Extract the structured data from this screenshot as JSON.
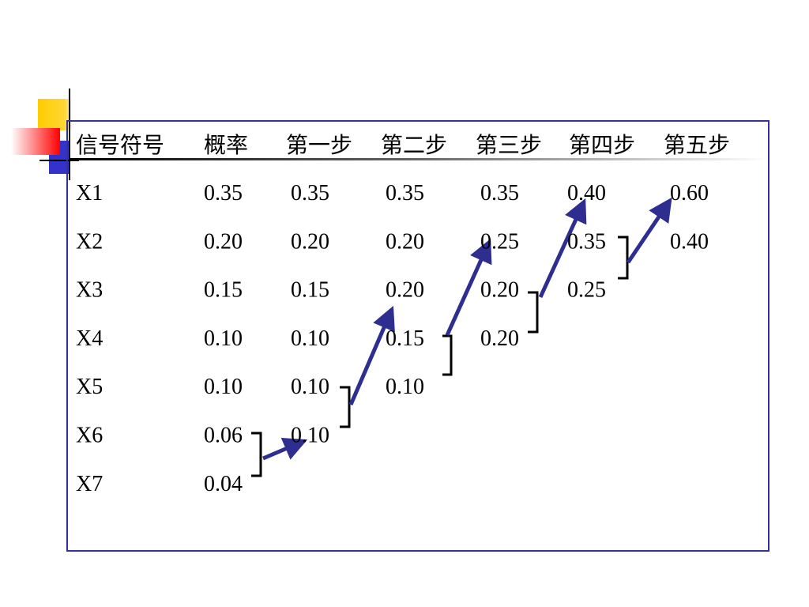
{
  "table": {
    "header": [
      "信号符号",
      "概率",
      "第一步",
      "第二步",
      "第三步",
      "第四步",
      "第五步"
    ],
    "rows": [
      [
        "X1",
        "0.35",
        "0.35",
        "0.35",
        "0.35",
        "0.40",
        "0.60"
      ],
      [
        "X2",
        "0.20",
        "0.20",
        "0.20",
        "0.25",
        "0.35",
        "0.40"
      ],
      [
        "X3",
        "0.15",
        "0.15",
        "0.20",
        "0.20",
        "0.25"
      ],
      [
        "X4",
        "0.10",
        "0.10",
        "0.15",
        "0.20"
      ],
      [
        "X5",
        "0.10",
        "0.10",
        "0.10"
      ],
      [
        "X6",
        "0.06",
        "0.10"
      ],
      [
        "X7",
        "0.04"
      ]
    ]
  }
}
